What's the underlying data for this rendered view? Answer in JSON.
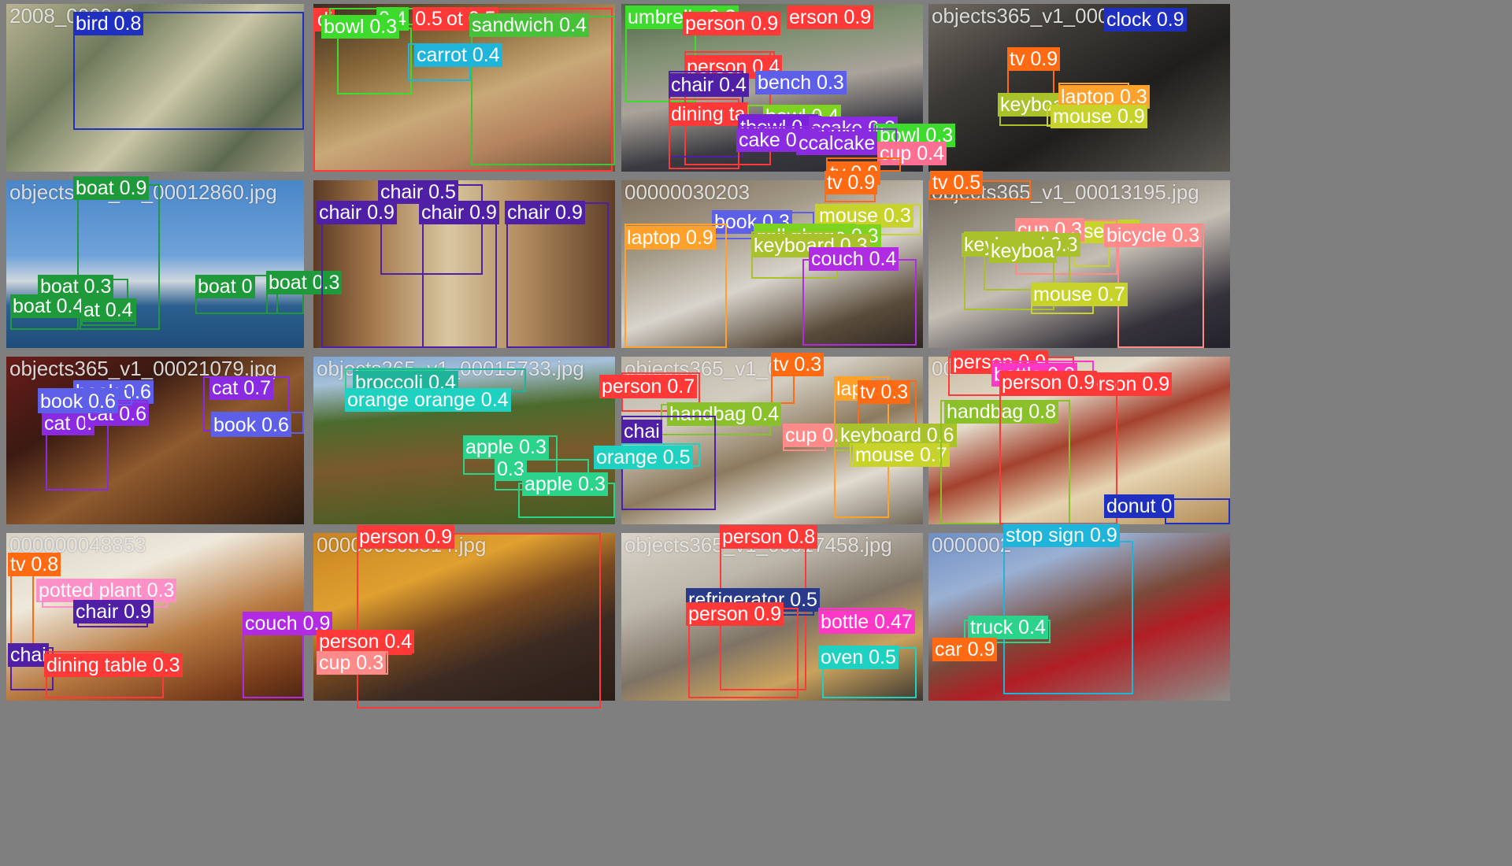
{
  "mosaic": {
    "tiles": [
      {
        "filename": "2008_000048",
        "bg": "linear-gradient(135deg,#b8b493 0%,#6f7a5c 30%,#c9c6a6 55%,#5e6a50 80%,#a7a286 100%)",
        "dets": [
          {
            "label": "bird 0.8",
            "color": "#1f2fbf"
          }
        ]
      },
      {
        "filename": "",
        "bg": "linear-gradient(160deg,#3b2b22 0%,#8a6a3a 30%,#c9a878 55%,#b4835e 75%,#6b4c33 100%)",
        "dets": [
          {
            "label": "di",
            "color": "#ff3838"
          },
          {
            "label": "0.4",
            "color": "#3ddb2b"
          },
          {
            "label": "0.5",
            "color": "#ff3838"
          },
          {
            "label": "ot 0.5",
            "color": "#ff3838"
          },
          {
            "label": "sandwich 0.4",
            "color": "#48c13a"
          },
          {
            "label": "bowl 0.3",
            "color": "#3ddb2b"
          },
          {
            "label": "carrot 0.4",
            "color": "#1fb4d9"
          }
        ]
      },
      {
        "filename": "",
        "bg": "linear-gradient(170deg,#51624a 0%,#7c8f6e 25%,#a9a39a 50%,#3a3a40 75%,#2a2a30 100%)",
        "dets": [
          {
            "label": "umbrella 0.3",
            "color": "#3ddb2b"
          },
          {
            "label": "person 0.9",
            "color": "#ff3838"
          },
          {
            "label": "erson 0.9",
            "color": "#ff3838"
          },
          {
            "label": "person 0.9",
            "color": "#ff3838"
          },
          {
            "label": "person 0.4",
            "color": "#ff3838"
          },
          {
            "label": "chair 0.4",
            "color": "#4f1fa6"
          },
          {
            "label": "bench 0.3",
            "color": "#5d5fe8"
          },
          {
            "label": "dining ta",
            "color": "#ff3838"
          },
          {
            "label": "bowl 0.4",
            "color": "#7ed321"
          },
          {
            "label": "tbowl 0.3",
            "color": "#7b21d9"
          },
          {
            "label": "ccake 0.3",
            "color": "#8a2be2"
          },
          {
            "label": "bowl 0.3",
            "color": "#3ddb2b"
          },
          {
            "label": "cake 0.3",
            "color": "#8a2be2"
          },
          {
            "label": "ccalcake",
            "color": "#8a2be2"
          },
          {
            "label": "cup 0.4",
            "color": "#ff6f91"
          },
          {
            "label": "tv 0.9",
            "color": "#ff6a13"
          }
        ]
      },
      {
        "filename": "objects365_v1_000179",
        "bg": "linear-gradient(150deg,#6e6a63 0%,#3d3a36 30%,#1f1e1c 60%,#5b5852 100%)",
        "dets": [
          {
            "label": "clock 0.9",
            "color": "#1f2fbf"
          },
          {
            "label": "tv 0.9",
            "color": "#ff6a13"
          },
          {
            "label": "keyboa",
            "color": "#a9c12b"
          },
          {
            "label": "laptop 0.3",
            "color": "#ffa12b"
          },
          {
            "label": "mouse 0.9",
            "color": "#c7d32b"
          }
        ]
      },
      {
        "filename": "objects365_v1_00012860.jpg",
        "bg": "linear-gradient(180deg,#4a86c9 0%,#6fa2d8 45%,#cfd6dd 60%,#2c5f8e 75%,#1e4d7a 100%)",
        "dets": [
          {
            "label": "boat 0.9",
            "color": "#1f9a3a"
          },
          {
            "label": "boat 0.3",
            "color": "#1f9a3a"
          },
          {
            "label": "boat 0.4",
            "color": "#1f9a3a"
          },
          {
            "label": "at 0.4",
            "color": "#1f9a3a"
          },
          {
            "label": "boat 0",
            "color": "#1f9a3a"
          },
          {
            "label": "boat 0.3",
            "color": "#1f9a3a"
          }
        ]
      },
      {
        "filename": "",
        "bg": "linear-gradient(90deg,#5a3a24 0%,#a5794d 20%,#d7c7a1 45%,#b08a5c 70%,#5e3e28 100%)",
        "dets": [
          {
            "label": "chair 0.5",
            "color": "#4f1fa6"
          },
          {
            "label": "chair 0.9",
            "color": "#4f1fa6"
          },
          {
            "label": "chair 0.9",
            "color": "#4f1fa6"
          },
          {
            "label": "chair 0.9",
            "color": "#4f1fa6"
          }
        ]
      },
      {
        "filename": "00000030203",
        "bg": "linear-gradient(160deg,#7b6c57 0%,#a29886 30%,#d8d4cc 55%,#5a4c3c 80%,#2e2620 100%)",
        "dets": [
          {
            "label": "tv 0.9",
            "color": "#ff6a13"
          },
          {
            "label": "book 0.3",
            "color": "#5d5fe8"
          },
          {
            "label": "mouse 0.3",
            "color": "#c7d32b"
          },
          {
            "label": "laptop 0.9",
            "color": "#ffa12b"
          },
          {
            "label": "cell phone 0.3",
            "color": "#7ed321"
          },
          {
            "label": "keyboard 0.3",
            "color": "#a9c12b"
          },
          {
            "label": "couch 0.4",
            "color": "#b12be2"
          }
        ]
      },
      {
        "filename": "objects365_v1_00013195.jpg",
        "bg": "linear-gradient(160deg,#6a6258 0%,#9b9488 30%,#c4beb4 50%,#35323a 80%,#23222a 100%)",
        "dets": [
          {
            "label": "tv 0.5",
            "color": "#ff6a13"
          },
          {
            "label": "use 0.6",
            "color": "#c7d32b"
          },
          {
            "label": "cup 0.3",
            "color": "#ff8a8a"
          },
          {
            "label": "bicycle 0.3",
            "color": "#ff8a8a"
          },
          {
            "label": "keyboard 0.3",
            "color": "#a9c12b"
          },
          {
            "label": "keyboa",
            "color": "#a9c12b"
          },
          {
            "label": "mouse 0.7",
            "color": "#c7d32b"
          }
        ]
      },
      {
        "filename": "objects365_v1_00021079.jpg",
        "bg": "linear-gradient(150deg,#6a1c1a 0%,#3a1a12 30%,#8e5a2e 55%,#5b3418 80%,#2a1a10 100%)",
        "dets": [
          {
            "label": "cat 0.7",
            "color": "#8a2be2"
          },
          {
            "label": "cat 0.",
            "color": "#8a2be2"
          },
          {
            "label": "book 0.6",
            "color": "#5d5fe8"
          },
          {
            "label": "book 0.6",
            "color": "#5d5fe8"
          },
          {
            "label": "cat 0.6",
            "color": "#8a2be2"
          },
          {
            "label": "book 0.6",
            "color": "#5d5fe8"
          }
        ]
      },
      {
        "filename": "objects365_v1_00015733.jpg",
        "bg": "linear-gradient(175deg,#7fa4cf 0%,#a6c0d8 15%,#4b6b2c 35%,#7a5a2c 60%,#3e5f22 100%)",
        "dets": [
          {
            "label": "apple 0.3",
            "color": "#2bd48a"
          },
          {
            "label": "broccoli 0.4",
            "color": "#1fb49a"
          },
          {
            "label": "orange 0.",
            "color": "#1fd1c1"
          },
          {
            "label": "orange 0.4",
            "color": "#1fd1c1"
          },
          {
            "label": "apple 0.3",
            "color": "#2bd48a"
          },
          {
            "label": "0.3",
            "color": "#2bd48a"
          },
          {
            "label": "apple 0.3",
            "color": "#2bd48a"
          }
        ]
      },
      {
        "filename": "objects365_v1_0",
        "bg": "linear-gradient(160deg,#b9b2a4 0%,#d3cdc1 30%,#8c7a5e 55%,#e1dbd0 75%,#6e6556 100%)",
        "dets": [
          {
            "label": "tv 0.3",
            "color": "#ff6a13"
          },
          {
            "label": "person 0.7",
            "color": "#ff3838"
          },
          {
            "label": "lapt",
            "color": "#ffa12b"
          },
          {
            "label": "tv 0.3",
            "color": "#ff6a13"
          },
          {
            "label": "handbag 0.4",
            "color": "#8ac12b"
          },
          {
            "label": "cup 0.5",
            "color": "#ff8a8a"
          },
          {
            "label": "chai",
            "color": "#4f1fa6"
          },
          {
            "label": "keyboard 0.6",
            "color": "#a9c12b"
          },
          {
            "label": "mouse 0.7",
            "color": "#c7d32b"
          },
          {
            "label": "orange 0.5",
            "color": "#1fd1c1"
          }
        ]
      },
      {
        "filename": "00",
        "bg": "linear-gradient(160deg,#c7b89f 0%,#e4dccb 30%,#a3422e 50%,#e5d3b0 70%,#b28a55 100%)",
        "dets": [
          {
            "label": "person 0.9",
            "color": "#ff3838"
          },
          {
            "label": "bottle 0.3",
            "color": "#ff37c7"
          },
          {
            "label": "person 0.9",
            "color": "#ff3838"
          },
          {
            "label": "handbag 0.8",
            "color": "#8ac12b"
          },
          {
            "label": "person 0.9",
            "color": "#ff3838"
          },
          {
            "label": "donut 0",
            "color": "#1f2fbf"
          }
        ]
      },
      {
        "filename": "000000048853",
        "bg": "linear-gradient(160deg,#d8d2c6 0%,#efe9dc 30%,#b87b42 60%,#7a3e1c 85%,#4a2410 100%)",
        "dets": [
          {
            "label": "tv 0.8",
            "color": "#ff6a13"
          },
          {
            "label": "potted plant 0.3",
            "color": "#ff8fc7"
          },
          {
            "label": "chair 0.9",
            "color": "#4f1fa6"
          },
          {
            "label": "couch 0.9",
            "color": "#b12be2"
          },
          {
            "label": "chai",
            "color": "#4f1fa6"
          },
          {
            "label": "dining table 0.3",
            "color": "#ff3838"
          }
        ]
      },
      {
        "filename": "000000568814.jpg",
        "bg": "linear-gradient(160deg,#c78320 0%,#e0a030 30%,#7a4a20 50%,#3a2a22 70%,#2a1e18 100%)",
        "dets": [
          {
            "label": "person 0.9",
            "color": "#ff3838"
          },
          {
            "label": "person 0.4",
            "color": "#ff3838"
          },
          {
            "label": "cup 0.3",
            "color": "#ff8a8a"
          }
        ]
      },
      {
        "filename": "objects365_v1_00017458.jpg",
        "bg": "linear-gradient(160deg,#d9d3c9 0%,#bdb6aa 30%,#7e7365 55%,#c9a25e 75%,#3a3630 100%)",
        "dets": [
          {
            "label": "person 0.8",
            "color": "#ff3838"
          },
          {
            "label": "refrigerator 0.5",
            "color": "#2a3a8a"
          },
          {
            "label": "person 0.9",
            "color": "#ff3838"
          },
          {
            "label": "bottle 0.47",
            "color": "#ff37c7"
          },
          {
            "label": "oven 0.5",
            "color": "#1fd1c1"
          }
        ]
      },
      {
        "filename": "0000002",
        "bg": "linear-gradient(160deg,#6e8fc4 0%,#9ab0d3 25%,#7a4a3a 50%,#b01e24 65%,#8c8e8a 100%)",
        "dets": [
          {
            "label": "stop sign 0.9",
            "color": "#1fb4d9"
          },
          {
            "label": "truck 0.4",
            "color": "#2bd48a"
          },
          {
            "label": "car 0.9",
            "color": "#ff6a13"
          }
        ]
      }
    ]
  }
}
